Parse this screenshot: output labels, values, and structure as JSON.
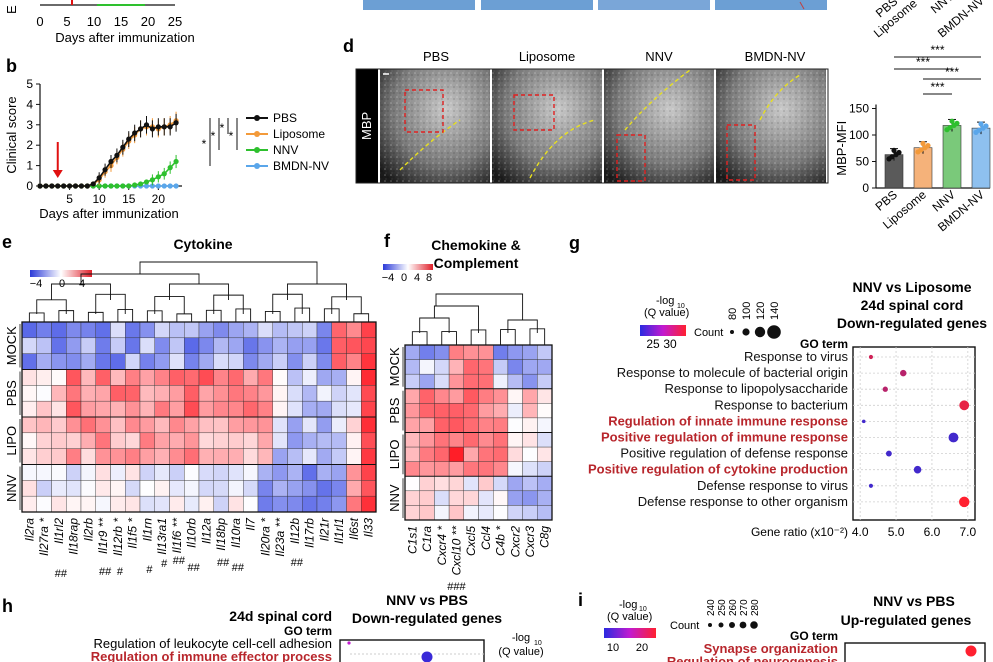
{
  "panels": {
    "b": "b",
    "d": "d",
    "e": "e",
    "f": "f",
    "g": "g",
    "h": "h",
    "i": "i"
  },
  "panel_a_fragment": {
    "ylabel_fragment": "E",
    "x_ticks": [
      "0",
      "5",
      "10",
      "15",
      "20",
      "25"
    ],
    "xlabel": "Days after immunization"
  },
  "panel_c_fragment": {
    "groups": [
      "PBS",
      "Liposome",
      "NNV",
      "BMDN-NV"
    ]
  },
  "chart_data": [
    {
      "id": "clinical-score",
      "type": "line",
      "title": "",
      "xlabel": "Days after immunization",
      "ylabel": "Clinical score",
      "xlim": [
        0,
        24
      ],
      "ylim": [
        0,
        5
      ],
      "x_ticks": [
        5,
        10,
        15,
        20
      ],
      "y_ticks": [
        0,
        1,
        2,
        3,
        4,
        5
      ],
      "arrow_day": 3,
      "legend_position": "right",
      "x": [
        0,
        1,
        2,
        3,
        4,
        5,
        6,
        7,
        8,
        9,
        10,
        11,
        12,
        13,
        14,
        15,
        16,
        17,
        18,
        19,
        20,
        21,
        22,
        23
      ],
      "series": [
        {
          "name": "PBS",
          "color": "#111111",
          "values": [
            0,
            0,
            0,
            0,
            0,
            0,
            0,
            0,
            0,
            0.1,
            0.4,
            0.8,
            1.2,
            1.5,
            1.9,
            2.3,
            2.6,
            2.8,
            3.0,
            2.8,
            2.9,
            2.9,
            2.9,
            3.1
          ]
        },
        {
          "name": "Liposome",
          "color": "#f39a3a",
          "values": [
            0,
            0,
            0,
            0,
            0,
            0,
            0,
            0,
            0,
            0.1,
            0.3,
            0.7,
            1.0,
            1.4,
            1.8,
            2.2,
            2.5,
            2.8,
            2.9,
            2.9,
            2.8,
            2.9,
            3.0,
            3.2
          ]
        },
        {
          "name": "NNV",
          "color": "#2ec02e",
          "values": [
            0,
            0,
            0,
            0,
            0,
            0,
            0,
            0,
            0,
            0,
            0,
            0,
            0,
            0,
            0,
            0,
            0.05,
            0.1,
            0.2,
            0.3,
            0.45,
            0.6,
            0.9,
            1.2
          ]
        },
        {
          "name": "BMDN-NV",
          "color": "#5aa6ea",
          "values": [
            0,
            0,
            0,
            0,
            0,
            0,
            0,
            0,
            0,
            0,
            0,
            0,
            0,
            0,
            0,
            0,
            0,
            0,
            0,
            0,
            0,
            0,
            0,
            0
          ]
        }
      ],
      "significance": [
        "*",
        "*",
        "*",
        "*"
      ]
    },
    {
      "id": "mbp-mfi",
      "type": "bar",
      "title": "",
      "ylabel": "MBP-MFI",
      "ylim": [
        0,
        200
      ],
      "y_ticks": [
        0,
        50,
        100,
        150
      ],
      "categories": [
        "PBS",
        "Liposome",
        "NNV",
        "BMDN-NV"
      ],
      "colors": [
        "#5a5a5a",
        "#f5b27a",
        "#7ac97a",
        "#8ec0ef"
      ],
      "values": [
        63,
        76,
        118,
        113
      ],
      "significance": [
        "***",
        "***",
        "***",
        "***"
      ]
    },
    {
      "id": "go-nnv-vs-liposome",
      "type": "scatter",
      "title": "NNV vs Liposome 24d spinal cord Down-regulated genes",
      "title_lines": [
        "NNV vs Liposome",
        "24d spinal cord",
        "Down-regulated genes"
      ],
      "xlabel": "Gene ratio (x10⁻²)",
      "ylabel": "GO term",
      "xlim": [
        3.8,
        7.2
      ],
      "x_ticks": [
        4.0,
        5.0,
        6.0,
        7.0
      ],
      "count_legend": [
        80,
        100,
        120,
        140
      ],
      "color_legend": {
        "title": "-log10 (Q value)",
        "ticks": [
          25,
          30
        ]
      },
      "terms": [
        {
          "label": "Response to virus",
          "highlight": false,
          "x": 4.3,
          "count": 60,
          "q": 30
        },
        {
          "label": "Response to molecule of bacterial origin",
          "highlight": false,
          "x": 5.2,
          "count": 80,
          "q": 29
        },
        {
          "label": "Response to lipopolysaccharide",
          "highlight": false,
          "x": 4.7,
          "count": 70,
          "q": 29
        },
        {
          "label": "Response to bacterium",
          "highlight": false,
          "x": 6.9,
          "count": 110,
          "q": 31
        },
        {
          "label": "Regulation of innate immune response",
          "highlight": true,
          "x": 4.1,
          "count": 55,
          "q": 24
        },
        {
          "label": "Positive regulation of immune response",
          "highlight": true,
          "x": 6.6,
          "count": 110,
          "q": 24
        },
        {
          "label": "Positive regulation of defense response",
          "highlight": false,
          "x": 4.8,
          "count": 75,
          "q": 24
        },
        {
          "label": "Positive regulation of cytokine production",
          "highlight": true,
          "x": 5.6,
          "count": 90,
          "q": 24
        },
        {
          "label": "Defense response to virus",
          "highlight": false,
          "x": 4.3,
          "count": 60,
          "q": 24
        },
        {
          "label": "Defense response to other organism",
          "highlight": false,
          "x": 6.9,
          "count": 115,
          "q": 32
        }
      ]
    }
  ],
  "panel_d": {
    "side_label": "MBP",
    "columns": [
      "PBS",
      "Liposome",
      "NNV",
      "BMDN-NV"
    ]
  },
  "panel_e": {
    "title": "Cytokine",
    "row_labels": [
      "MOCK",
      "PBS",
      "LIPO",
      "NNV"
    ],
    "scale_ticks": [
      "−4",
      "0",
      "4"
    ],
    "genes": [
      "Il2ra",
      "Il27ra *",
      "Il1rl2",
      "Il18rap",
      "Il2rb",
      "Il1r9 **",
      "Il12rb *",
      "Il1f5 *",
      "Il1rn",
      "Il13ra1",
      "Il1f6 **",
      "Il10rb",
      "Il12a",
      "Il18bp",
      "Il10ra",
      "Il7",
      "Il20ra *",
      "Il23a **",
      "Il12b",
      "Il17rb",
      "Il21r",
      "Il1rl1",
      "Il6st",
      "Il33"
    ],
    "marks": [
      "##",
      "##",
      "#",
      "#",
      "#",
      "##",
      "##",
      "##",
      "##",
      "##"
    ]
  },
  "panel_f": {
    "title": "Chemokine & Complement",
    "scale_ticks": [
      "−4",
      "0",
      "4",
      "8"
    ],
    "row_labels": [
      "MOCK",
      "PBS",
      "LIPO",
      "NNV"
    ],
    "genes": [
      "C1s1",
      "C1ra",
      "Cxcr4 *",
      "Cxcl10 **",
      "Cxcl5",
      "Ccl4",
      "C4b *",
      "Cxcr2",
      "Cxcr3",
      "C8g"
    ],
    "marks": [
      "###"
    ]
  },
  "panel_h": {
    "title_left": "24d spinal cord",
    "title_right_1": "NNV vs PBS",
    "title_right_2": "Down-regulated genes",
    "go_term": "GO term",
    "legend_title": "-log10 (Q value)",
    "terms": [
      {
        "label": "Regulation of leukocyte cell-cell adhesion",
        "highlight": false
      },
      {
        "label": "Regulation of immune effector process",
        "highlight": true
      }
    ]
  },
  "panel_i": {
    "title_1": "NNV vs PBS",
    "title_2": "Up-regulated genes",
    "go_term": "GO term",
    "legend_title": "-log10 (Q value)",
    "legend_ticks": [
      "10",
      "20"
    ],
    "count_label": "Count",
    "count_legend": [
      "240",
      "250",
      "260",
      "270",
      "280"
    ],
    "terms": [
      {
        "label": "Synapse organization",
        "highlight": true
      },
      {
        "label": "Regulation of neurogenesis",
        "highlight": true
      }
    ]
  }
}
